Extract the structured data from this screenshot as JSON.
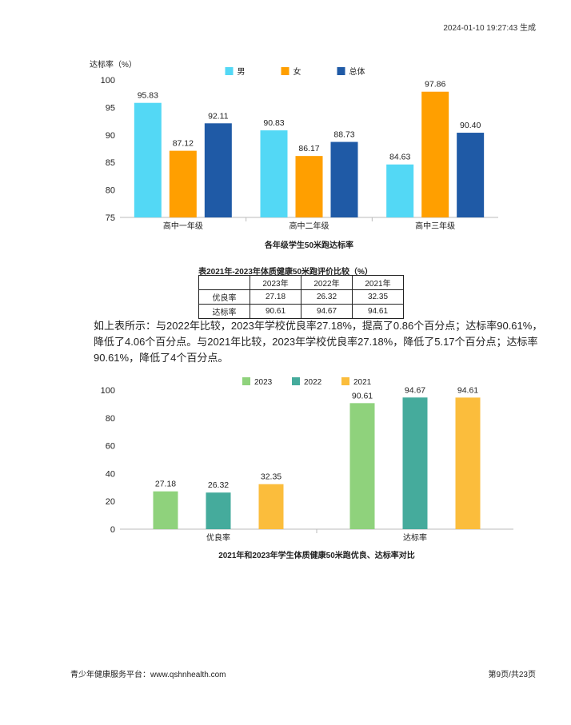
{
  "header": {
    "generated": "2024-01-10 19:27:43 生成"
  },
  "chart_data": [
    {
      "type": "bar",
      "title": "各年级学生50米跑达标率",
      "ylabel": "达标率（%）",
      "categories": [
        "高中一年级",
        "高中二年级",
        "高中三年级"
      ],
      "series": [
        {
          "name": "男",
          "values": [
            95.83,
            90.83,
            84.63
          ],
          "color": "#53d8f5"
        },
        {
          "name": "女",
          "values": [
            87.12,
            86.17,
            97.86
          ],
          "color": "#ff9f00"
        },
        {
          "name": "总体",
          "values": [
            92.11,
            88.73,
            90.4
          ],
          "color": "#1f5aa6"
        }
      ],
      "ylim": [
        75,
        100
      ],
      "yticks": [
        "75",
        "80",
        "85",
        "90",
        "95",
        "100"
      ],
      "legend": "top-center",
      "grid": false
    },
    {
      "type": "bar",
      "title": "2021年和2023年学生体质健康50米跑优良、达标率对比",
      "ylabel": "",
      "categories": [
        "优良率",
        "达标率"
      ],
      "series": [
        {
          "name": "2023",
          "values": [
            27.18,
            90.61
          ],
          "color": "#8fd27c"
        },
        {
          "name": "2022",
          "values": [
            26.32,
            94.67
          ],
          "color": "#45ab9c"
        },
        {
          "name": "2021",
          "values": [
            32.35,
            94.61
          ],
          "color": "#fbbd3c"
        }
      ],
      "ylim": [
        0,
        100
      ],
      "yticks": [
        "0",
        "20",
        "40",
        "60",
        "80",
        "100"
      ],
      "legend": "top-center",
      "grid": false
    }
  ],
  "table": {
    "caption": "表2021年-2023年体质健康50米跑评价比较（%）",
    "header": [
      "",
      "2023年",
      "2022年",
      "2021年"
    ],
    "rows": [
      [
        "优良率",
        "27.18",
        "26.32",
        "32.35"
      ],
      [
        "达标率",
        "90.61",
        "94.67",
        "94.61"
      ]
    ]
  },
  "paragraph": "如上表所示：与2022年比较，2023年学校优良率27.18%，提高了0.86个百分点；达标率90.61%，降低了4.06个百分点。与2021年比较，2023年学校优良率27.18%，降低了5.17个百分点；达标率90.61%，降低了4个百分点。",
  "footer": {
    "left": "青少年健康服务平台：www.qshnhealth.com",
    "right": "第9页/共23页"
  }
}
